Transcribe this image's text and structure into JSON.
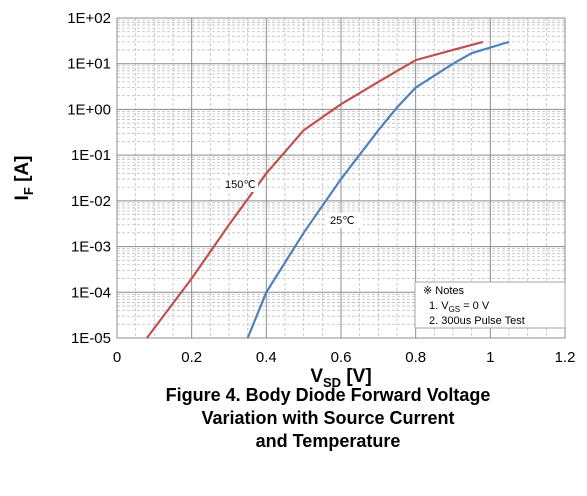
{
  "chart_data": {
    "type": "line",
    "title": [
      "Figure 4. Body Diode Forward Voltage",
      "Variation with Source Current",
      "and Temperature"
    ],
    "x_label": {
      "main": "V",
      "sub": "SD",
      "rest": " [V]"
    },
    "y_label": {
      "main": "I",
      "sub": "F",
      "rest": " [A]"
    },
    "log_y": true,
    "grid": true,
    "minor_grid": true,
    "xlim": [
      0,
      1.2
    ],
    "xticks": [
      0,
      0.2,
      0.4,
      0.6,
      0.8,
      1,
      1.2
    ],
    "ylim": [
      1e-05,
      100
    ],
    "yticks": [
      {
        "value": 1e-05,
        "label": "1E-05"
      },
      {
        "value": 0.0001,
        "label": "1E-04"
      },
      {
        "value": 0.001,
        "label": "1E-03"
      },
      {
        "value": 0.01,
        "label": "1E-02"
      },
      {
        "value": 0.1,
        "label": "1E-01"
      },
      {
        "value": 1,
        "label": "1E+00"
      },
      {
        "value": 10,
        "label": "1E+01"
      },
      {
        "value": 100,
        "label": "1E+02"
      }
    ],
    "series": [
      {
        "name": "150℃",
        "color": "#c0504d",
        "x": [
          0.08,
          0.2,
          0.3,
          0.4,
          0.5,
          0.6,
          0.7,
          0.8,
          0.9,
          0.98
        ],
        "values": [
          1e-05,
          0.0002,
          0.003,
          0.04,
          0.35,
          1.3,
          4,
          12,
          20,
          30
        ]
      },
      {
        "name": "25℃",
        "color": "#4f81bd",
        "x": [
          0.35,
          0.4,
          0.5,
          0.6,
          0.7,
          0.75,
          0.8,
          0.9,
          0.95,
          1.05
        ],
        "values": [
          1e-05,
          0.0001,
          0.002,
          0.03,
          0.35,
          1.1,
          3,
          10,
          17,
          30
        ]
      }
    ],
    "notes": {
      "heading": "※ Notes",
      "line1": {
        "pre": "1. V",
        "sub": "GS",
        "post": " = 0 V"
      },
      "line2": "2. 300us Pulse Test"
    }
  }
}
